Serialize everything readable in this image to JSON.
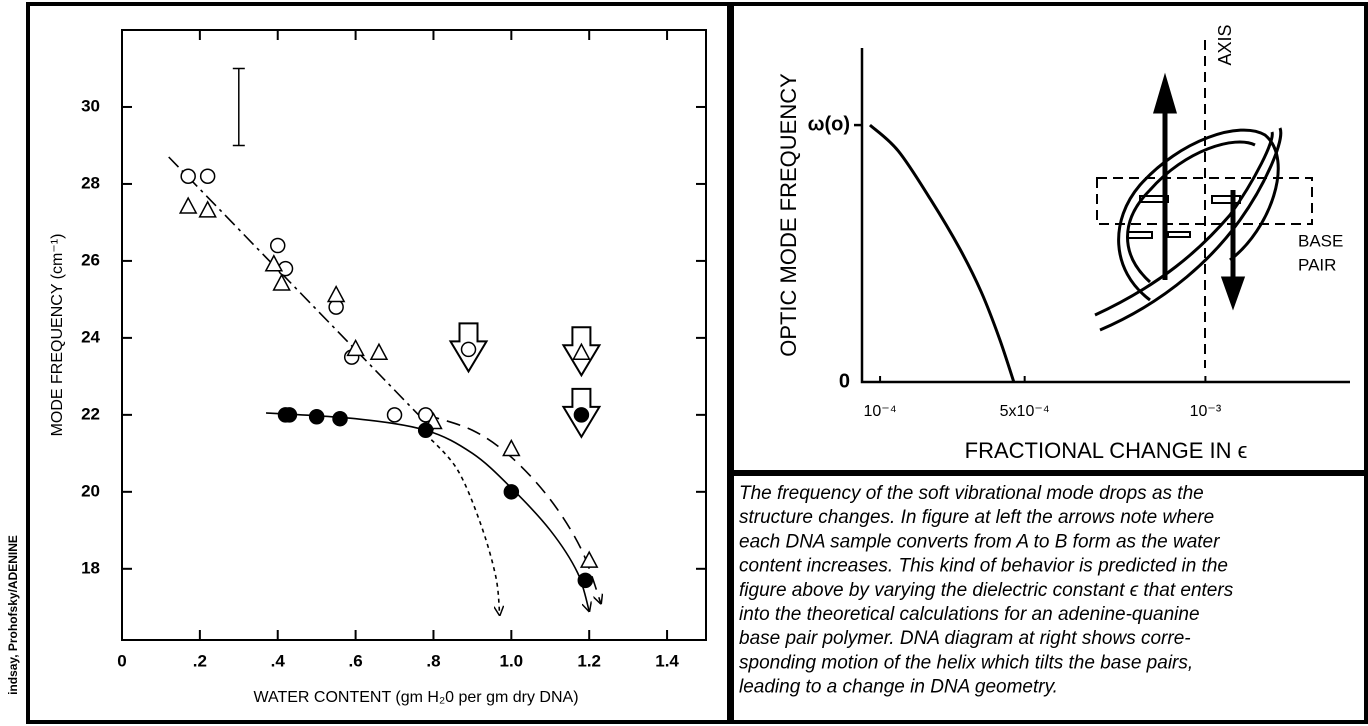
{
  "chart_data": [
    {
      "type": "scatter",
      "x_label": "WATER CONTENT (gm H₂0 per gm dry DNA)",
      "y_label": "MODE FREQUENCY (cm⁻¹)",
      "xlim": [
        0,
        1.5
      ],
      "ylim": [
        16.15,
        32
      ],
      "xticks": [
        0,
        {
          "value": 0.2,
          "label": ".2"
        },
        {
          "value": 0.4,
          "label": ".4"
        },
        {
          "value": 0.6,
          "label": ".6"
        },
        {
          "value": 0.8,
          "label": ".8"
        },
        {
          "value": 1.0,
          "label": "1.0"
        },
        1.2,
        1.4
      ],
      "yticks": [
        18,
        20,
        22,
        24,
        26,
        28,
        30
      ],
      "series": [
        {
          "marker": "open-circle",
          "color": "#000000",
          "x": [
            0.17,
            0.22,
            0.4,
            0.42,
            0.55,
            0.59,
            0.7,
            0.78,
            0.89
          ],
          "values": [
            28.2,
            28.2,
            26.4,
            25.8,
            24.8,
            23.5,
            22.0,
            22.0,
            23.7
          ]
        },
        {
          "marker": "open-triangle",
          "color": "#000000",
          "x": [
            0.17,
            0.22,
            0.39,
            0.41,
            0.55,
            0.6,
            0.66,
            0.8,
            1.0,
            1.2,
            1.18
          ],
          "values": [
            27.4,
            27.3,
            25.9,
            25.4,
            25.1,
            23.7,
            23.6,
            21.8,
            21.1,
            18.2,
            23.6
          ]
        },
        {
          "marker": "filled-circle",
          "color": "#000000",
          "x": [
            0.42,
            0.43,
            0.5,
            0.56,
            0.78,
            1.0,
            1.19,
            1.18
          ],
          "values": [
            22.0,
            22.0,
            21.95,
            21.9,
            21.6,
            20.0,
            17.7,
            22.0
          ]
        },
        {
          "line_style": "dash-dot",
          "color": "#000000",
          "x": [
            0.12,
            0.8
          ],
          "values": [
            28.7,
            21.6
          ]
        },
        {
          "line_style": "solid",
          "color": "#000000",
          "arrow_end": true,
          "x": [
            0.37,
            0.6,
            0.78,
            0.9,
            1.0,
            1.1,
            1.17,
            1.2
          ],
          "values": [
            22.05,
            21.9,
            21.6,
            21.0,
            20.1,
            19.0,
            17.9,
            16.9
          ]
        },
        {
          "line_style": "dashed",
          "color": "#000000",
          "arrow_end": true,
          "x": [
            0.78,
            0.9,
            1.0,
            1.1,
            1.18,
            1.23
          ],
          "values": [
            22.0,
            21.6,
            20.9,
            19.8,
            18.5,
            17.1
          ]
        },
        {
          "line_style": "dotted",
          "color": "#000000",
          "arrow_end": true,
          "x": [
            0.78,
            0.86,
            0.92,
            0.96,
            0.97
          ],
          "values": [
            21.5,
            20.6,
            19.2,
            17.8,
            16.8
          ]
        }
      ],
      "error_bar": {
        "x": 0.3,
        "y": 30,
        "error": 1
      },
      "transition_arrows": [
        {
          "x": 0.89,
          "y": 23.7
        },
        {
          "x": 1.18,
          "y": 23.6
        },
        {
          "x": 1.18,
          "y": 22.0
        }
      ]
    },
    {
      "type": "line",
      "x_label": "FRACTIONAL CHANGE IN ϵ",
      "y_label": "OPTIC MODE FREQUENCY",
      "xlim": [
        5e-05,
        0.0014
      ],
      "ylim": [
        0,
        1.3
      ],
      "xticks": [
        {
          "value": 0.0001,
          "label": "10⁻⁴"
        },
        {
          "value": 0.0005,
          "label": "5x10⁻⁴"
        },
        {
          "value": 0.001,
          "label": "10⁻³"
        }
      ],
      "yticks": [
        0,
        {
          "value": 1,
          "label": "ω(o)"
        }
      ],
      "series": [
        {
          "line_style": "solid",
          "color": "#000000",
          "x": [
            7.2e-05,
            0.00015,
            0.00024,
            0.00032,
            0.00038,
            0.00043,
            0.00047
          ],
          "values": [
            1.0,
            0.9,
            0.71,
            0.52,
            0.35,
            0.17,
            0
          ]
        }
      ],
      "annotations": [
        "AXIS",
        "BASE",
        "PAIR"
      ]
    }
  ],
  "caption_lines": [
    "The frequency of the soft vibrational mode drops as the",
    "structure changes. In figure at left the arrows note where",
    "each DNA sample converts from A to B form as the water",
    "content increases. This kind of behavior is predicted in the",
    "figure above by varying the dielectric constant ϵ that enters",
    "into the theoretical calculations for an adenine-quanine",
    "base pair polymer. DNA diagram at right shows corre-",
    "sponding motion of the helix which tilts the base pairs,",
    "leading to a change in DNA geometry."
  ],
  "credit": "indsay, Prohofsky/ADENINE"
}
